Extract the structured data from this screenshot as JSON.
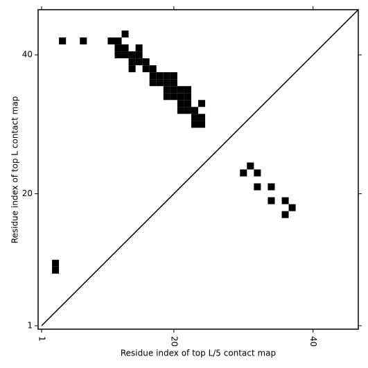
{
  "chart_data": {
    "type": "scatter",
    "xlabel": "Residue index of top L/5 contact map",
    "ylabel": "Residue index of top L contact map",
    "xlim": [
      0.5,
      46.5
    ],
    "ylim": [
      0.5,
      46.5
    ],
    "xticks": [
      1,
      20,
      40
    ],
    "yticks": [
      1,
      20,
      40
    ],
    "marker": "square",
    "diagonal": true,
    "series": [
      {
        "color": "#000000",
        "x": [
          13,
          4,
          7,
          11,
          12,
          12,
          13,
          15,
          12,
          13,
          14,
          15,
          14,
          15,
          16,
          14,
          16,
          17,
          17,
          18,
          19,
          20,
          17,
          18,
          19,
          20,
          19,
          20,
          21,
          22,
          19,
          20,
          21,
          22,
          21,
          22,
          24,
          21,
          22,
          23,
          23,
          24,
          23,
          24,
          30,
          31,
          32,
          32,
          34,
          34,
          36,
          37,
          36,
          3,
          3
        ],
        "values": [
          43,
          42,
          42,
          42,
          42,
          41,
          41,
          41,
          40,
          40,
          40,
          40,
          39,
          39,
          39,
          38,
          38,
          38,
          37,
          37,
          37,
          37,
          36,
          36,
          36,
          36,
          35,
          35,
          35,
          35,
          34,
          34,
          34,
          34,
          33,
          33,
          33,
          32,
          32,
          32,
          31,
          31,
          30,
          30,
          23,
          24,
          23,
          21,
          21,
          19,
          19,
          18,
          17,
          10,
          9
        ]
      }
    ]
  }
}
